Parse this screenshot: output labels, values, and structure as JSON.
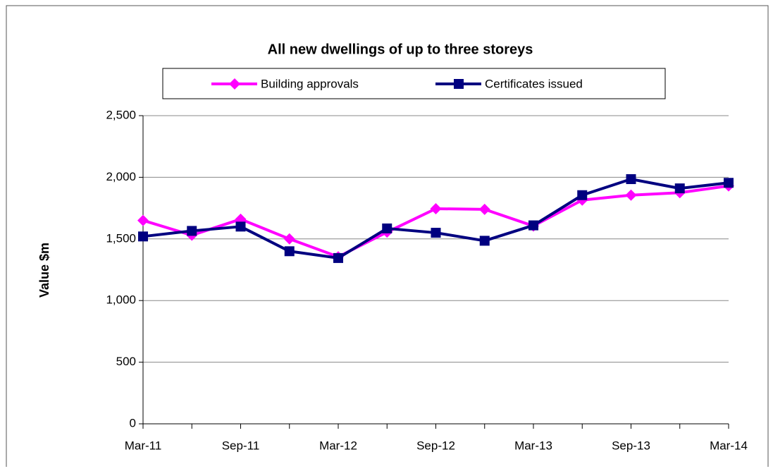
{
  "chart_data": {
    "type": "line",
    "title": "All new dwellings of up to three storeys",
    "y_label": "Value $m",
    "categories": [
      "Mar-11",
      null,
      "Sep-11",
      null,
      "Mar-12",
      null,
      "Sep-12",
      null,
      "Mar-13",
      null,
      "Sep-13",
      null,
      "Mar-14"
    ],
    "series": [
      {
        "name": "Building approvals",
        "color": "#ff00ff",
        "marker": "diamond",
        "values": [
          1650,
          1530,
          1660,
          1500,
          1355,
          1555,
          1745,
          1740,
          1605,
          1815,
          1855,
          1875,
          1930
        ]
      },
      {
        "name": "Certificates issued",
        "color": "#000080",
        "marker": "square",
        "values": [
          1520,
          1565,
          1600,
          1400,
          1345,
          1585,
          1550,
          1485,
          1610,
          1855,
          1985,
          1910,
          1955
        ]
      }
    ],
    "ylim": [
      0,
      2500
    ],
    "yticks": [
      0,
      500,
      {
        "value": 1000,
        "label": "1,000"
      },
      {
        "value": 1500,
        "label": "1,500"
      },
      {
        "value": 2000,
        "label": "2,000"
      },
      {
        "value": 2500,
        "label": "2,500"
      }
    ],
    "grid": true,
    "legend": "top"
  }
}
